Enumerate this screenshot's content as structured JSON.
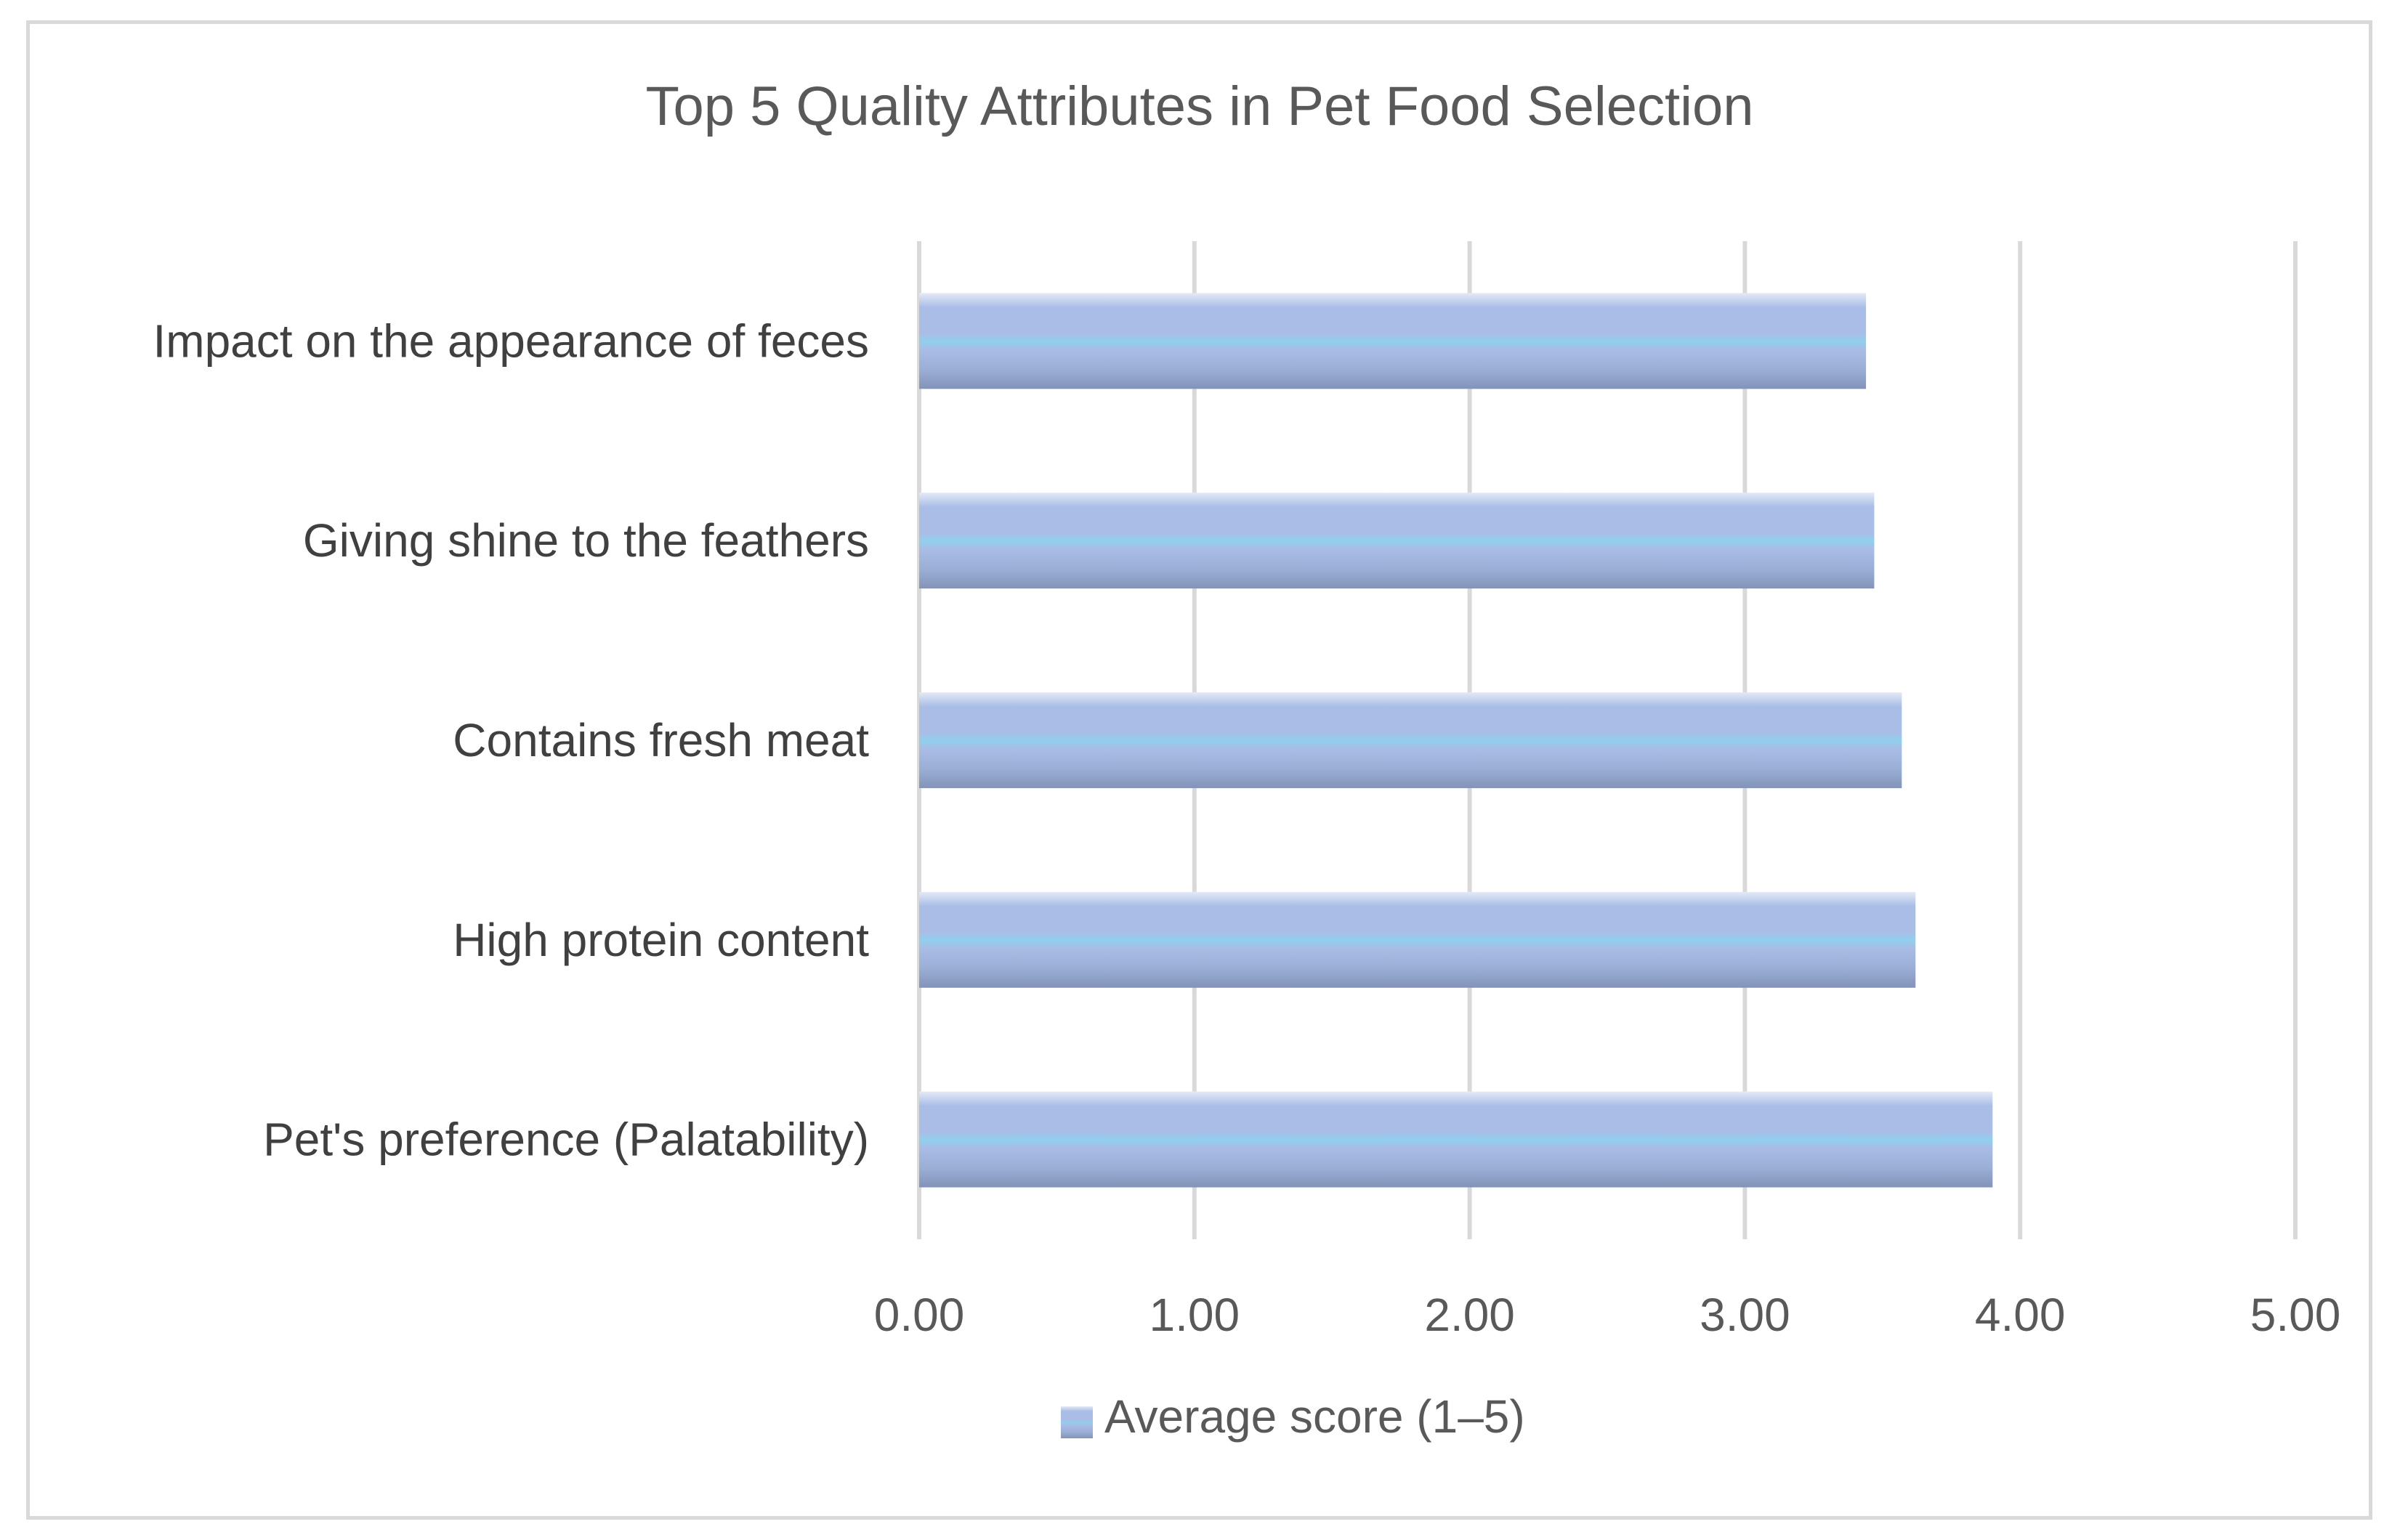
{
  "chart_data": {
    "type": "bar",
    "orientation": "horizontal",
    "title": "Top 5 Quality Attributes in Pet Food Selection",
    "categories": [
      "Pet's preference (Palatability)",
      "High protein content",
      "Contains fresh meat",
      "Giving shine to the feathers",
      "Impact on the appearance of feces"
    ],
    "series": [
      {
        "name": "Average score (1–5)",
        "values": [
          3.9,
          3.62,
          3.57,
          3.47,
          3.44
        ]
      }
    ],
    "xlim": [
      0,
      5
    ],
    "x_ticks": [
      "0.00",
      "1.00",
      "2.00",
      "3.00",
      "4.00",
      "5.00"
    ],
    "grid": true,
    "legend_position": "bottom",
    "colors": {
      "bar_light": "#a9bde6",
      "bar_stripe": "#8fd0ee",
      "bar_dark": "#8a9dc4",
      "grid": "#d9d9d9",
      "text": "#595959"
    }
  }
}
